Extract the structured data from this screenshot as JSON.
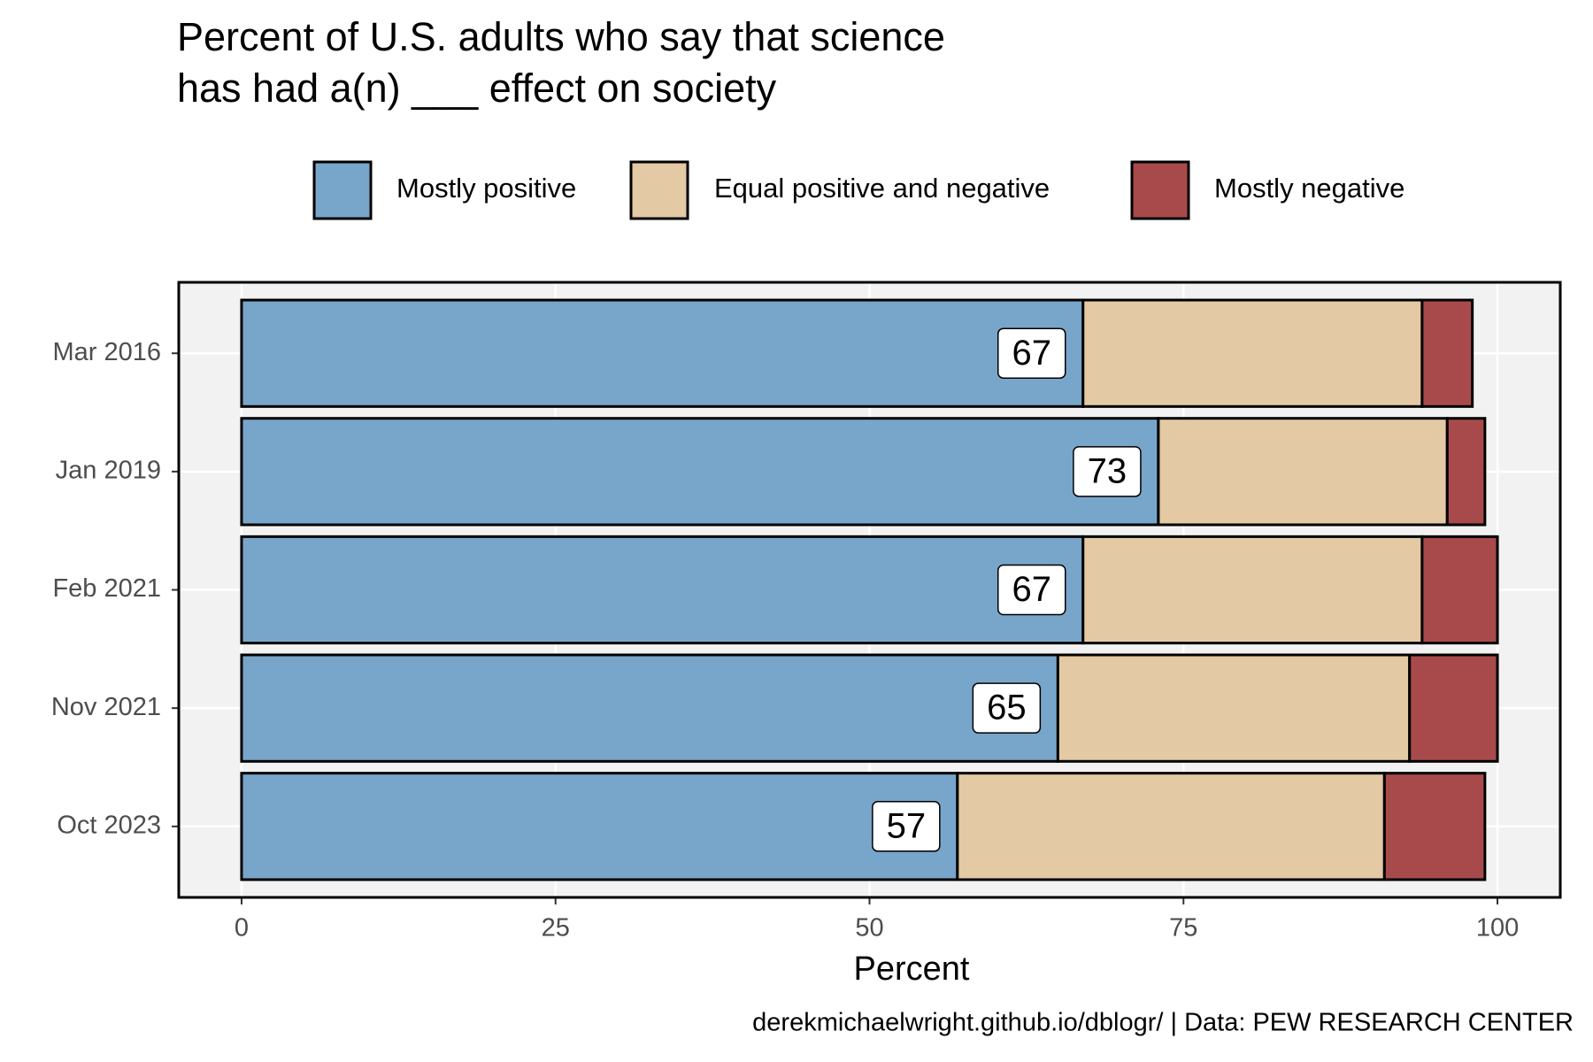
{
  "chart_data": {
    "type": "stacked-bar-horizontal",
    "title": "Percent of U.S. adults who say that science\nhas had a(n) ___ effect on society",
    "categories": [
      "Mar 2016",
      "Jan 2019",
      "Feb 2021",
      "Nov 2021",
      "Oct 2023"
    ],
    "series": [
      {
        "name": "Mostly positive",
        "color": "#78a5ca",
        "values": [
          67,
          73,
          67,
          65,
          57
        ]
      },
      {
        "name": "Equal positive and negative",
        "color": "#e3c9a4",
        "values": [
          27,
          23,
          27,
          28,
          34
        ]
      },
      {
        "name": "Mostly negative",
        "color": "#a84a4b",
        "values": [
          4,
          3,
          6,
          7,
          8
        ]
      }
    ],
    "xlabel": "Percent",
    "xlim": [
      -5,
      105
    ],
    "xticks": [
      0,
      25,
      50,
      75,
      100
    ],
    "grid": true,
    "legend": "top",
    "caption": "derekmichaelwright.github.io/dblogr/ | Data: PEW RESEARCH CENTER"
  }
}
